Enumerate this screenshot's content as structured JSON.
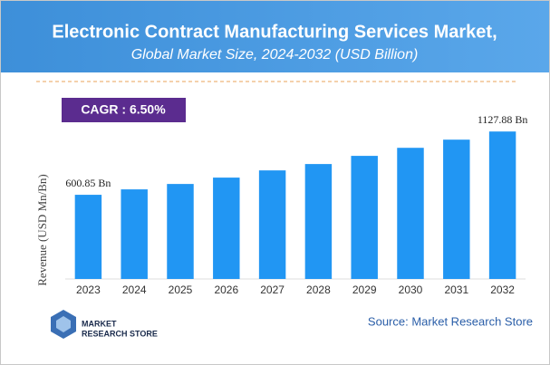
{
  "chart_data": {
    "type": "bar",
    "title": "Electronic Contract Manufacturing Services Market,",
    "subtitle": "Global Market Size, 2024-2032 (USD Billion)",
    "y_label": "Revenue (USD Mn/Bn)",
    "categories": [
      "2023",
      "2024",
      "2025",
      "2026",
      "2027",
      "2028",
      "2029",
      "2030",
      "2031",
      "2032"
    ],
    "values": [
      600.85,
      646,
      691,
      744,
      804,
      857,
      925,
      992,
      1060,
      1127.88
    ],
    "value_labels": [
      "600.85 Bn",
      null,
      null,
      null,
      null,
      null,
      null,
      null,
      null,
      "1127.88 Bn"
    ],
    "color": "#2196f3",
    "ylim": [
      -100,
      1250
    ]
  },
  "cagr": "CAGR :  6.50%",
  "source": "Source: Market Research Store",
  "logo": {
    "line1": "MARKET",
    "line2": "RESEARCH STORE"
  }
}
